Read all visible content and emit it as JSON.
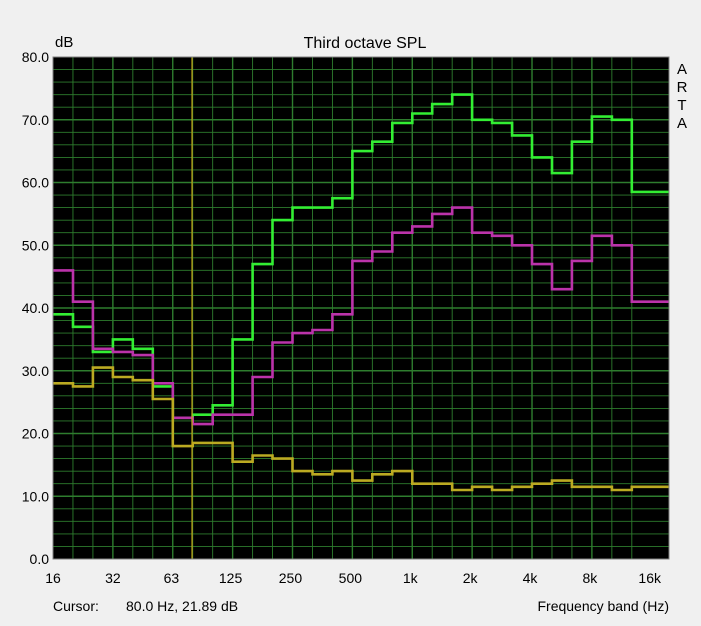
{
  "window": {
    "watermark": [
      "A",
      "R",
      "T",
      "A"
    ]
  },
  "status": {
    "cursor_label": "Cursor:",
    "cursor_value": "80.0 Hz, 21.89 dB",
    "xlabel": "Frequency band (Hz)"
  },
  "chart_data": {
    "type": "line",
    "title": "Third octave SPL",
    "ylabel": "dB",
    "xlabel": "Frequency band (Hz)",
    "xscale": "log",
    "ylim": [
      0,
      80
    ],
    "xlim": [
      16,
      20000
    ],
    "grid": true,
    "background": "#000000",
    "grid_color": "#2e7d2e",
    "y_ticks": [
      "0.0",
      "10.0",
      "20.0",
      "30.0",
      "40.0",
      "50.0",
      "60.0",
      "70.0",
      "80.0"
    ],
    "x_ticks": [
      "16",
      "32",
      "63",
      "125",
      "250",
      "500",
      "1k",
      "2k",
      "4k",
      "8k",
      "16k"
    ],
    "x_tick_values": [
      16,
      32,
      63,
      125,
      250,
      500,
      1000,
      2000,
      4000,
      8000,
      16000
    ],
    "categories": [
      "16",
      "20",
      "25",
      "31.5",
      "40",
      "50",
      "63",
      "80",
      "100",
      "125",
      "160",
      "200",
      "250",
      "315",
      "400",
      "500",
      "630",
      "800",
      "1k",
      "1.25k",
      "1.6k",
      "2k",
      "2.5k",
      "3.15k",
      "4k",
      "5k",
      "6.3k",
      "8k",
      "10k",
      "12.5k",
      "16k"
    ],
    "series": [
      {
        "color": "#33ee33",
        "values": [
          39.0,
          37.0,
          33.0,
          35.0,
          33.5,
          27.5,
          22.5,
          23.0,
          24.5,
          35.0,
          47.0,
          54.0,
          56.0,
          56.0,
          57.5,
          65.0,
          66.5,
          69.5,
          71.0,
          72.5,
          74.0,
          70.0,
          69.5,
          67.5,
          64.0,
          61.5,
          66.5,
          70.5,
          70.0,
          58.5,
          58.5
        ]
      },
      {
        "color": "#bb33aa",
        "values": [
          46.0,
          41.0,
          33.5,
          33.0,
          32.5,
          28.0,
          22.5,
          21.5,
          23.0,
          23.0,
          29.0,
          34.5,
          36.0,
          36.5,
          39.0,
          47.5,
          49.0,
          52.0,
          53.0,
          55.0,
          56.0,
          52.0,
          51.5,
          50.0,
          47.0,
          43.0,
          47.5,
          51.5,
          50.0,
          41.0,
          41.0
        ]
      },
      {
        "color": "#bbaa22",
        "values": [
          28.0,
          27.5,
          30.5,
          29.0,
          28.5,
          25.5,
          18.0,
          18.5,
          18.5,
          15.5,
          16.5,
          16.0,
          14.0,
          13.5,
          14.0,
          12.5,
          13.5,
          14.0,
          12.0,
          12.0,
          11.0,
          11.5,
          11.0,
          11.5,
          12.0,
          12.5,
          11.5,
          11.5,
          11.0,
          11.5,
          11.5
        ]
      }
    ],
    "cursor": {
      "x": 80.0,
      "y": 21.89,
      "color": "#c8a818"
    }
  }
}
